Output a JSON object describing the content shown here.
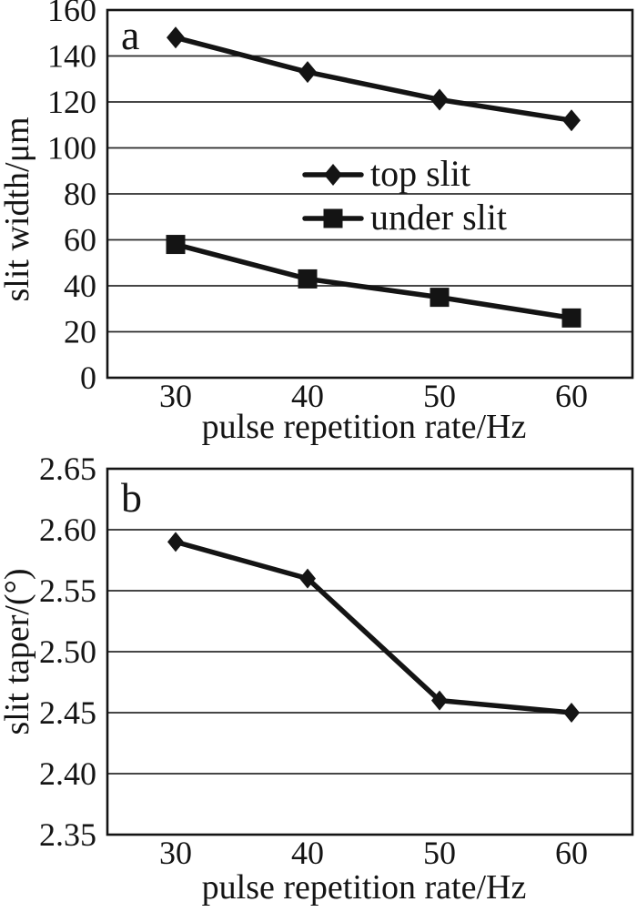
{
  "figure_title": "",
  "colors": {
    "ink": "#141414",
    "grid": "#2b2b2b",
    "background": "#ffffff"
  },
  "chart_data": [
    {
      "type": "line",
      "panel_label": "a",
      "x": [
        30,
        40,
        50,
        60
      ],
      "xticklabels": [
        "30",
        "40",
        "50",
        "60"
      ],
      "series": [
        {
          "name": "top slit",
          "marker": "diamond",
          "values": [
            148,
            133,
            121,
            112
          ]
        },
        {
          "name": "under slit",
          "marker": "square",
          "values": [
            58,
            43,
            35,
            26
          ]
        }
      ],
      "xlabel": "pulse repetition rate/Hz",
      "ylabel": "slit width/μm",
      "ylim": [
        0,
        160
      ],
      "yticks": [
        0,
        20,
        40,
        60,
        80,
        100,
        120,
        140,
        160
      ],
      "yticklabels": [
        "0",
        "20",
        "40",
        "60",
        "80",
        "100",
        "120",
        "140",
        "160"
      ],
      "grid": "horizontal",
      "legend_position": "inside-center",
      "legend_labels": [
        "top slit",
        "under slit"
      ]
    },
    {
      "type": "line",
      "panel_label": "b",
      "x": [
        30,
        40,
        50,
        60
      ],
      "xticklabels": [
        "30",
        "40",
        "50",
        "60"
      ],
      "series": [
        {
          "name": "slit taper",
          "marker": "diamond",
          "values": [
            2.59,
            2.56,
            2.46,
            2.45
          ]
        }
      ],
      "xlabel": "pulse repetition rate/Hz",
      "ylabel": "slit taper/(°)",
      "ylim": [
        2.35,
        2.65
      ],
      "yticks": [
        2.35,
        2.4,
        2.45,
        2.5,
        2.55,
        2.6,
        2.65
      ],
      "yticklabels": [
        "2.35",
        "2.40",
        "2.45",
        "2.50",
        "2.55",
        "2.60",
        "2.65"
      ],
      "grid": "horizontal",
      "legend_position": "none"
    }
  ]
}
